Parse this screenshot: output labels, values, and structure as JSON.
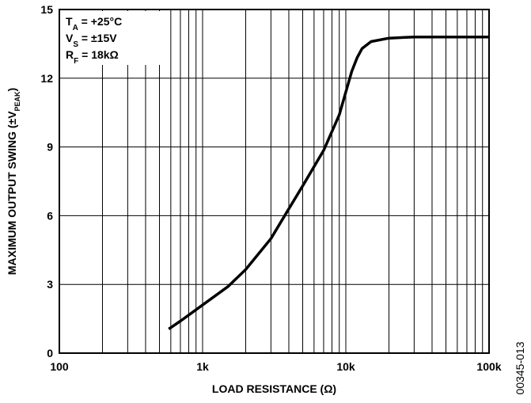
{
  "chart_data": {
    "type": "line",
    "xlabel": {
      "text": "LOAD RESISTANCE (Ω)"
    },
    "ylabel": {
      "text": "MAXIMUM OUTPUT SWING (±V",
      "sub": "PEAK",
      "rest": ")"
    },
    "annotations": [
      {
        "text": "T",
        "sub": "A",
        "rest": " = +25°C"
      },
      {
        "text": "V",
        "sub": "S",
        "rest": " = ±15V"
      },
      {
        "text": "R",
        "sub": "F",
        "rest": " = 18kΩ"
      }
    ],
    "figure_id": "00345-013",
    "x": [
      580,
      700,
      1000,
      1500,
      2000,
      3000,
      4000,
      5000,
      7000,
      9000,
      10000,
      11000,
      12000,
      13000,
      15000,
      20000,
      30000,
      50000,
      100000
    ],
    "series": [
      {
        "color": "#000000",
        "values": [
          1.05,
          1.4,
          2.1,
          2.9,
          3.65,
          5.0,
          6.3,
          7.3,
          8.85,
          10.4,
          11.4,
          12.3,
          12.9,
          13.3,
          13.6,
          13.75,
          13.8,
          13.8,
          13.8
        ]
      }
    ],
    "xscale": "log",
    "xlim": [
      100,
      100000
    ],
    "xticks": [
      100,
      {
        "value": 1000,
        "label": "1k"
      },
      {
        "value": 10000,
        "label": "10k"
      },
      {
        "value": 100000,
        "label": "100k"
      }
    ],
    "xminor_ticks": [
      200,
      300,
      400,
      500,
      600,
      700,
      800,
      900,
      2000,
      3000,
      4000,
      5000,
      6000,
      7000,
      8000,
      9000,
      20000,
      30000,
      40000,
      50000,
      60000,
      70000,
      80000,
      90000
    ],
    "ylim": [
      0,
      15
    ],
    "yticks": [
      0,
      3,
      6,
      9,
      12,
      15
    ],
    "grid": true
  }
}
